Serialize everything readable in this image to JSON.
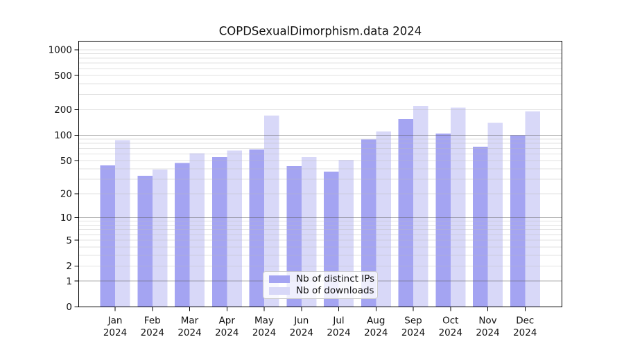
{
  "chart_data": {
    "type": "bar",
    "title": "COPDSexualDimorphism.data 2024",
    "categories": [
      "Jan 2024",
      "Feb 2024",
      "Mar 2024",
      "Apr 2024",
      "May 2024",
      "Jun 2024",
      "Jul 2024",
      "Aug 2024",
      "Sep 2024",
      "Oct 2024",
      "Nov 2024",
      "Dec 2024"
    ],
    "series": [
      {
        "name": "Nb of distinct IPs",
        "color": "#a4a4f2",
        "values": [
          44,
          33,
          47,
          55,
          68,
          43,
          37,
          89,
          155,
          104,
          73,
          100
        ]
      },
      {
        "name": "Nb of downloads",
        "color": "#d8d8f8",
        "values": [
          87,
          39,
          61,
          66,
          170,
          55,
          51,
          110,
          220,
          210,
          140,
          190
        ]
      }
    ],
    "y_axis": {
      "scale": "log1p",
      "tick_values": [
        0,
        1,
        2,
        5,
        10,
        20,
        50,
        100,
        200,
        500,
        1000
      ],
      "tick_labels": [
        "0",
        "1",
        "2",
        "5",
        "10",
        "20",
        "50",
        "100",
        "200",
        "500",
        "1000"
      ],
      "major_grid_values": [
        1,
        10,
        100
      ],
      "minor_grid_values": [
        2,
        3,
        4,
        5,
        6,
        7,
        8,
        9,
        20,
        30,
        40,
        50,
        60,
        70,
        80,
        90,
        200,
        300,
        400,
        500,
        600,
        700,
        800,
        900,
        1000
      ],
      "ylim": [
        0,
        1000
      ]
    },
    "x_axis": {
      "label_line_2": "2024"
    },
    "grid": true,
    "legend_position": "lower center",
    "colors": {
      "major_gridline": "#b2b2b2",
      "minor_gridline": "#e6e6e6",
      "axis": "#000000",
      "text": "#111111"
    }
  }
}
